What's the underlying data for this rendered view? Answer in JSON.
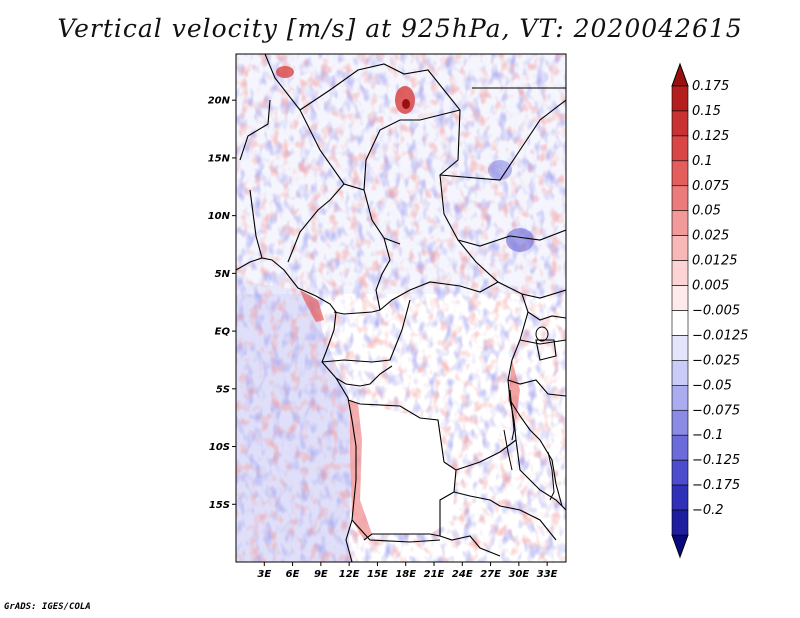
{
  "title": "Vertical velocity [m/s] at 925hPa, VT: 2020042615",
  "credit": "GrADS: IGES/COLA",
  "map": {
    "lon_range": [
      0,
      35
    ],
    "lat_range": [
      -20,
      24
    ],
    "lon_ticks": [
      {
        "value": 3,
        "label": "3E"
      },
      {
        "value": 6,
        "label": "6E"
      },
      {
        "value": 9,
        "label": "9E"
      },
      {
        "value": 12,
        "label": "12E"
      },
      {
        "value": 15,
        "label": "15E"
      },
      {
        "value": 18,
        "label": "18E"
      },
      {
        "value": 21,
        "label": "21E"
      },
      {
        "value": 24,
        "label": "24E"
      },
      {
        "value": 27,
        "label": "27E"
      },
      {
        "value": 30,
        "label": "30E"
      },
      {
        "value": 33,
        "label": "33E"
      }
    ],
    "lat_ticks": [
      {
        "value": 20,
        "label": "20N"
      },
      {
        "value": 15,
        "label": "15N"
      },
      {
        "value": 10,
        "label": "10N"
      },
      {
        "value": 5,
        "label": "5N"
      },
      {
        "value": 0,
        "label": "EQ"
      },
      {
        "value": -5,
        "label": "5S"
      },
      {
        "value": -10,
        "label": "10S"
      },
      {
        "value": -15,
        "label": "15S"
      }
    ]
  },
  "colorbar": {
    "levels": [
      {
        "label": "0.175",
        "color": "#b51e1e"
      },
      {
        "label": "0.15",
        "color": "#c83232"
      },
      {
        "label": "0.125",
        "color": "#d84646"
      },
      {
        "label": "0.1",
        "color": "#e45e5e"
      },
      {
        "label": "0.075",
        "color": "#ec7c7c"
      },
      {
        "label": "0.05",
        "color": "#f29a9a"
      },
      {
        "label": "0.025",
        "color": "#f8b8b8"
      },
      {
        "label": "0.0125",
        "color": "#fcd4d4"
      },
      {
        "label": "0.005",
        "color": "#feeaea"
      },
      {
        "label": "-0.005",
        "color": "#ffffff"
      },
      {
        "label": "-0.0125",
        "color": "#e4e4fb"
      },
      {
        "label": "-0.025",
        "color": "#cbcbf7"
      },
      {
        "label": "-0.05",
        "color": "#ababf0"
      },
      {
        "label": "-0.075",
        "color": "#8b8be6"
      },
      {
        "label": "-0.1",
        "color": "#6b6bda"
      },
      {
        "label": "-0.125",
        "color": "#4c4ccc"
      },
      {
        "label": "-0.175",
        "color": "#3030b8"
      },
      {
        "label": "-0.2",
        "color": "#1e1e9e"
      }
    ],
    "over_color": "#9a1010",
    "under_color": "#0a0a80"
  }
}
